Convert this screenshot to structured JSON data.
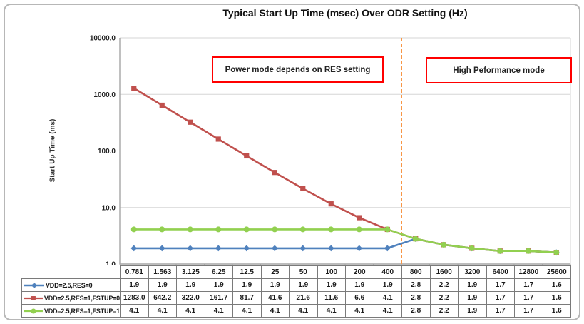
{
  "title": "Typical Start Up Time (msec) Over ODR Setting (Hz)",
  "annotations": {
    "left_box": "Power mode depends on RES setting",
    "right_box": "High Peformance mode"
  },
  "chart_data": {
    "type": "line",
    "x_categories": [
      "0.781",
      "1.563",
      "3.125",
      "6.25",
      "12.5",
      "25",
      "50",
      "100",
      "200",
      "400",
      "800",
      "1600",
      "3200",
      "6400",
      "12800",
      "25600"
    ],
    "xlabel": "",
    "ylabel": "Start Up Time (ms)",
    "y_scale": "log",
    "ylim": [
      1,
      10000
    ],
    "y_ticks": [
      {
        "label": "10000.0",
        "value": 10000
      },
      {
        "label": "1000.0",
        "value": 1000
      },
      {
        "label": "100.0",
        "value": 100
      },
      {
        "label": "10.0",
        "value": 10
      },
      {
        "label": "1.0",
        "value": 1
      }
    ],
    "grid": "horizontal",
    "legend_position": "table-left",
    "series": [
      {
        "name": "VDD=2.5,RES=0",
        "color": "#4F81BD",
        "marker": "diamond",
        "values": [
          1.9,
          1.9,
          1.9,
          1.9,
          1.9,
          1.9,
          1.9,
          1.9,
          1.9,
          1.9,
          2.8,
          2.2,
          1.9,
          1.7,
          1.7,
          1.6
        ]
      },
      {
        "name": "VDD=2.5,RES=1,FSTUP=0",
        "color": "#C0504D",
        "marker": "square",
        "values": [
          1283.0,
          642.2,
          322.0,
          161.7,
          81.7,
          41.6,
          21.6,
          11.6,
          6.6,
          4.1,
          2.8,
          2.2,
          1.9,
          1.7,
          1.7,
          1.6
        ]
      },
      {
        "name": "VDD=2.5,RES=1,FSTUP=1",
        "color": "#92D050",
        "marker": "circle",
        "values": [
          4.1,
          4.1,
          4.1,
          4.1,
          4.1,
          4.1,
          4.1,
          4.1,
          4.1,
          4.1,
          2.8,
          2.2,
          1.9,
          1.7,
          1.7,
          1.6
        ]
      }
    ],
    "divider": {
      "boundary_index": 10,
      "between": [
        "400",
        "800"
      ],
      "color": "#F79646",
      "style": "dashed"
    }
  },
  "table": {
    "header_row": [
      "0.781",
      "1.563",
      "3.125",
      "6.25",
      "12.5",
      "25",
      "50",
      "100",
      "200",
      "400",
      "800",
      "1600",
      "3200",
      "6400",
      "12800",
      "25600"
    ],
    "rows": [
      {
        "label": "VDD=2.5,RES=0",
        "values": [
          "1.9",
          "1.9",
          "1.9",
          "1.9",
          "1.9",
          "1.9",
          "1.9",
          "1.9",
          "1.9",
          "1.9",
          "2.8",
          "2.2",
          "1.9",
          "1.7",
          "1.7",
          "1.6"
        ]
      },
      {
        "label": "VDD=2.5,RES=1,FSTUP=0",
        "values": [
          "1283.0",
          "642.2",
          "322.0",
          "161.7",
          "81.7",
          "41.6",
          "21.6",
          "11.6",
          "6.6",
          "4.1",
          "2.8",
          "2.2",
          "1.9",
          "1.7",
          "1.7",
          "1.6"
        ]
      },
      {
        "label": "VDD=2.5,RES=1,FSTUP=1",
        "values": [
          "4.1",
          "4.1",
          "4.1",
          "4.1",
          "4.1",
          "4.1",
          "4.1",
          "4.1",
          "4.1",
          "4.1",
          "2.8",
          "2.2",
          "1.9",
          "1.7",
          "1.7",
          "1.6"
        ]
      }
    ]
  },
  "colors": {
    "annotation_border": "#FF0000",
    "divider_orange": "#F79646",
    "gridline": "#D6D6D6",
    "axis": "#A6A6A6",
    "table_border": "#7A7A7A",
    "series_blue": "#4F81BD",
    "series_red": "#C0504D",
    "series_green": "#92D050"
  }
}
